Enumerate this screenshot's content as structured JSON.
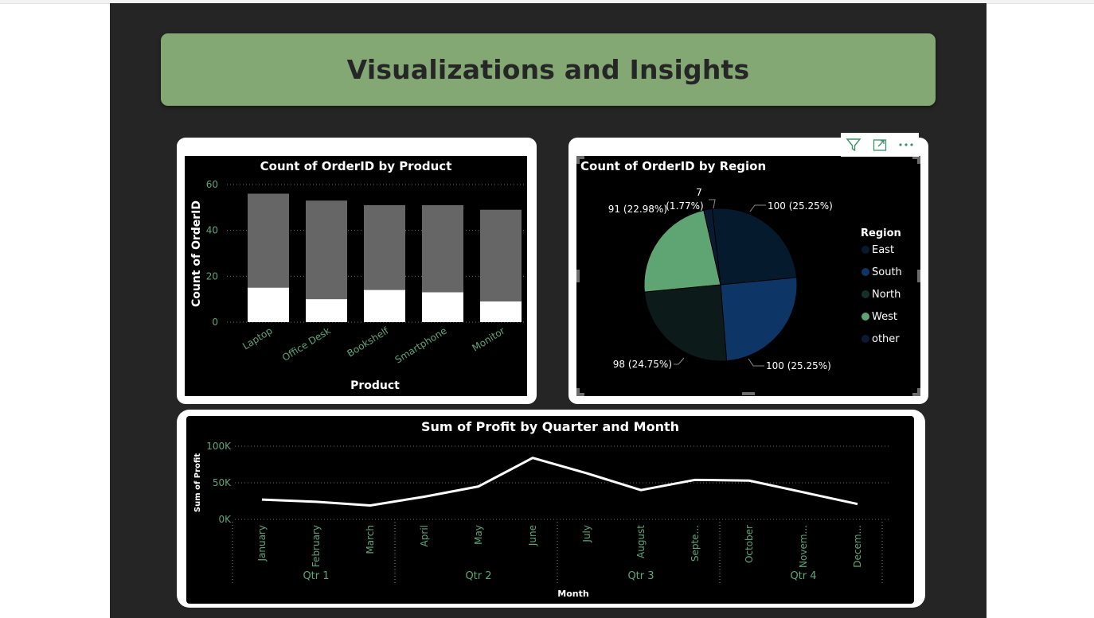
{
  "banner": {
    "title": "Visualizations and Insights"
  },
  "toolbar": {
    "icons": [
      "filter-icon",
      "focus-mode-icon",
      "more-options-icon"
    ]
  },
  "colors": {
    "canvas": "#252525",
    "banner": "#83a874",
    "bar_total": "#666666",
    "bar_part": "#ffffff",
    "axis_text": "#5fa47a",
    "east": "#061a2e",
    "south": "#0d3566",
    "north": "#0c1a1a",
    "west": "#5fa574",
    "other": "#0a1a33"
  },
  "chart_data": [
    {
      "type": "bar",
      "title": "Count of OrderID by Product",
      "xlabel": "Product",
      "ylabel": "Count of OrderID",
      "ylim": [
        0,
        60
      ],
      "yticks": [
        "0",
        "20",
        "40",
        "60"
      ],
      "categories": [
        "Laptop",
        "Office Desk",
        "Bookshelf",
        "Smartphone",
        "Monitor"
      ],
      "series": [
        {
          "values": [
            56,
            53,
            51,
            51,
            49
          ]
        },
        {
          "values": [
            15,
            10,
            14,
            13,
            9
          ]
        }
      ],
      "grid": true
    },
    {
      "type": "pie",
      "title": "Count of OrderID by Region",
      "legend_title": "Region",
      "legend_position": "right",
      "slices": [
        {
          "name": "East",
          "value": 100,
          "label": "100 (25.25%)",
          "color": "#061a2e"
        },
        {
          "name": "South",
          "value": 100,
          "label": "100 (25.25%)",
          "color": "#0d3566"
        },
        {
          "name": "North",
          "value": 98,
          "label": "98 (24.75%)",
          "color": "#0c1a1a"
        },
        {
          "name": "West",
          "value": 91,
          "label": "91 (22.98%)",
          "color": "#5fa574"
        },
        {
          "name": "other",
          "value": 7,
          "label_value": "7",
          "label_pct": "(1.77%)",
          "color": "#0a1a33"
        }
      ]
    },
    {
      "type": "line",
      "title": "Sum of Profit by Quarter and Month",
      "xlabel": "Month",
      "ylabel": "Sum of Profit",
      "ylim": [
        0,
        100000
      ],
      "yticks": [
        "0K",
        "50K",
        "100K"
      ],
      "months": [
        "January",
        "February",
        "March",
        "April",
        "May",
        "June",
        "July",
        "August",
        "Septe...",
        "October",
        "Novem...",
        "Decem..."
      ],
      "quarters": [
        "Qtr 1",
        "Qtr 2",
        "Qtr 3",
        "Qtr 4"
      ],
      "values": [
        27000,
        24000,
        19000,
        31000,
        45000,
        84000,
        63000,
        40000,
        54000,
        53000,
        37000,
        21000
      ],
      "grid": true
    }
  ]
}
